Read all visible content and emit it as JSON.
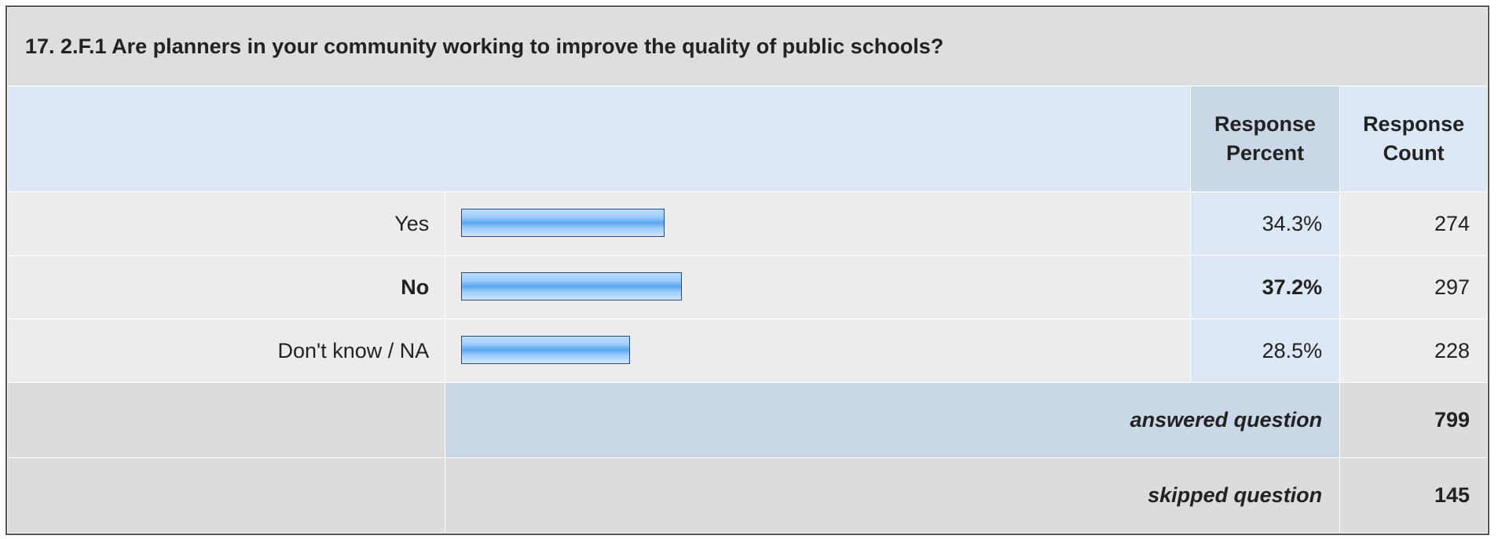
{
  "title": "17. 2.F.1 Are planners in your community working to improve the quality of public schools?",
  "headers": {
    "percent_line1": "Response",
    "percent_line2": "Percent",
    "count_line1": "Response",
    "count_line2": "Count"
  },
  "summary": {
    "answered_label": "answered question",
    "answered_value": "799",
    "skipped_label": "skipped question",
    "skipped_value": "145"
  },
  "chart_data": {
    "type": "bar",
    "orientation": "horizontal",
    "categories": [
      "Yes",
      "No",
      "Don't know / NA"
    ],
    "values": [
      34.3,
      37.2,
      28.5
    ],
    "percent_labels": [
      "34.3%",
      "37.2%",
      "28.5%"
    ],
    "counts": [
      "274",
      "297",
      "228"
    ],
    "highlighted_category": "No",
    "xlim": [
      0,
      100
    ],
    "bar_color": "#9ccbfb"
  }
}
